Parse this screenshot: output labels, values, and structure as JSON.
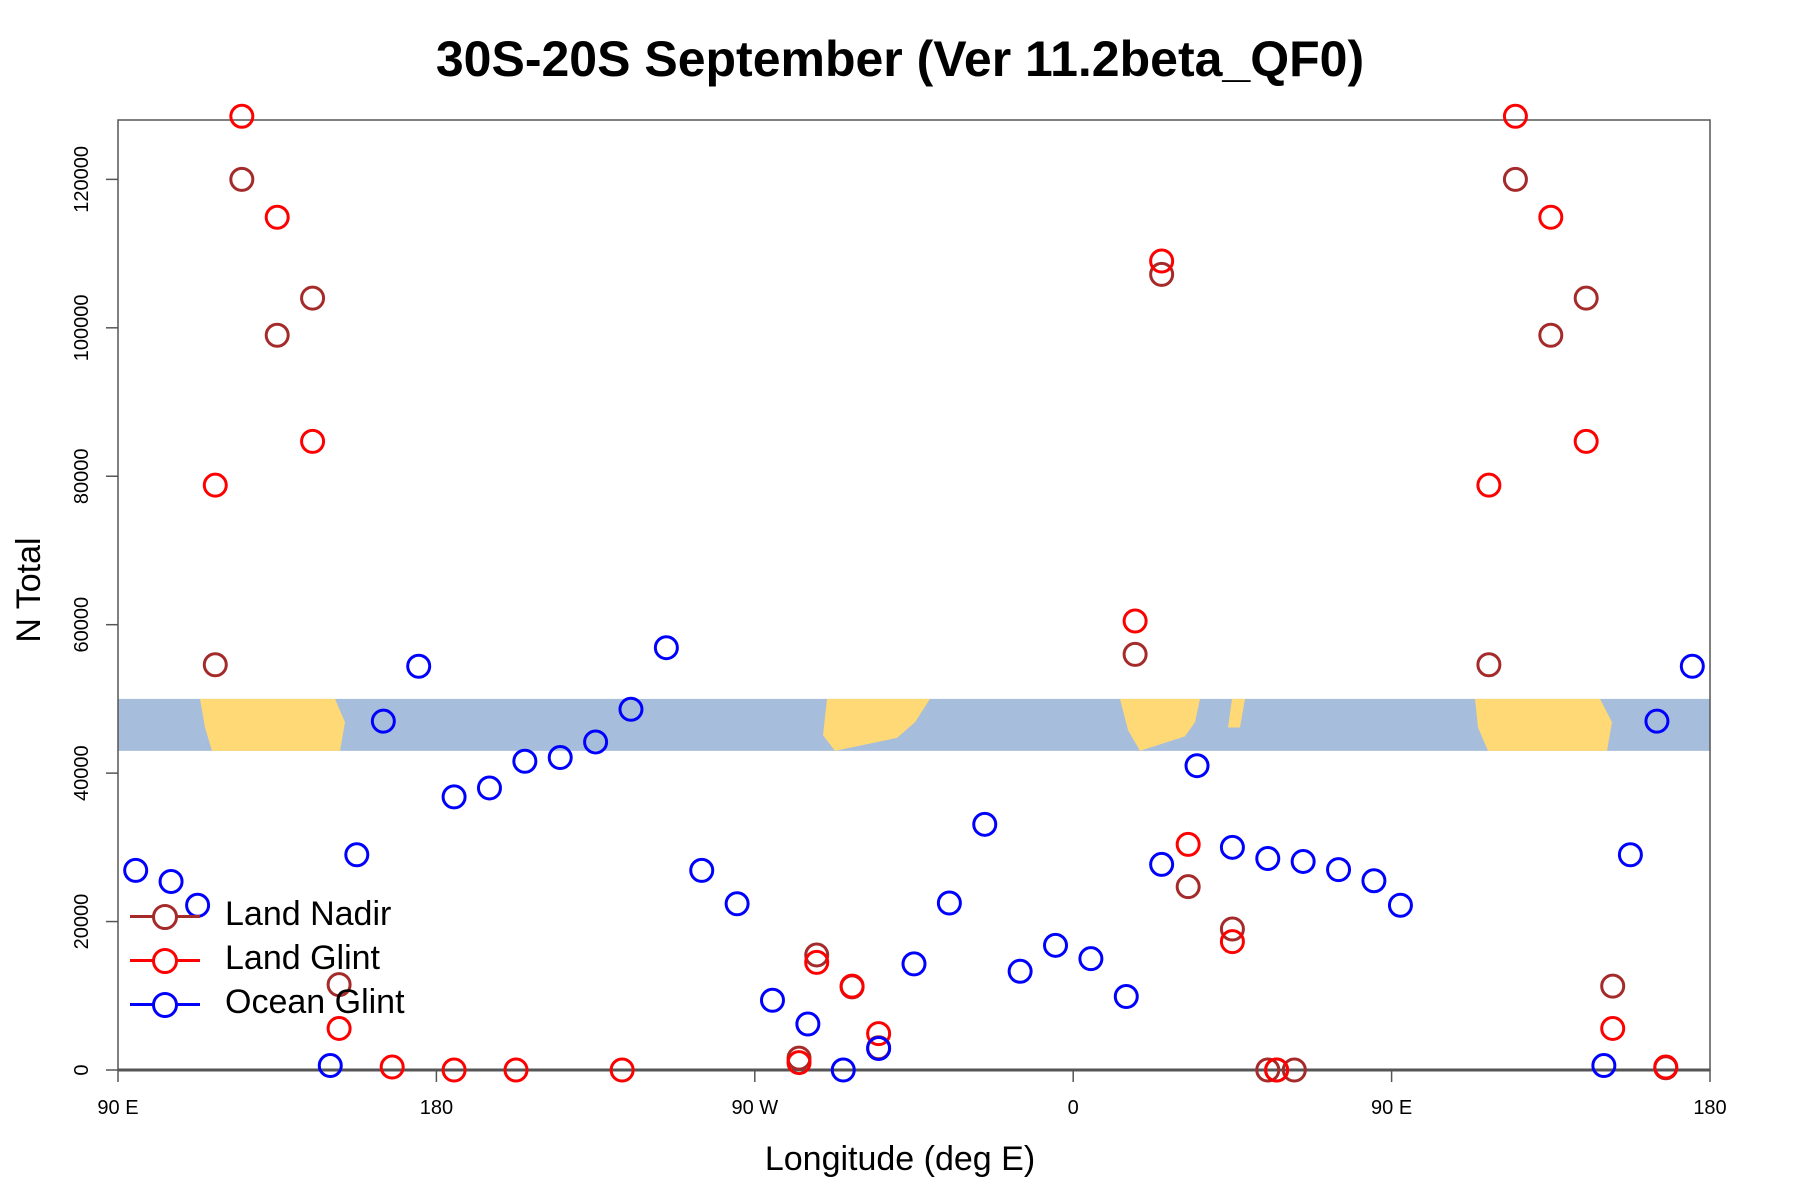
{
  "chart_data": {
    "type": "scatter",
    "title": "30S-20S September (Ver 11.2beta_QF0)",
    "xlabel": "Longitude (deg E)",
    "ylabel": "N Total",
    "xlim": [
      90,
      540
    ],
    "ylim": [
      0,
      128000
    ],
    "x_ticks": [
      {
        "value": 90,
        "label": "90 E"
      },
      {
        "value": 180,
        "label": "180"
      },
      {
        "value": 270,
        "label": "90 W"
      },
      {
        "value": 360,
        "label": "0"
      },
      {
        "value": 450,
        "label": "90 E"
      },
      {
        "value": 540,
        "label": "180"
      }
    ],
    "y_ticks": [
      {
        "value": 0,
        "label": "0"
      },
      {
        "value": 20000,
        "label": "20000"
      },
      {
        "value": 40000,
        "label": "40000"
      },
      {
        "value": 60000,
        "label": "60000"
      },
      {
        "value": 80000,
        "label": "80000"
      },
      {
        "value": 100000,
        "label": "100000"
      },
      {
        "value": 120000,
        "label": "120000"
      }
    ],
    "legend_position": "bottom-left",
    "series": [
      {
        "name": "Land Nadir",
        "color": "#a52a2a",
        "points": [
          [
            117.5,
            54600
          ],
          [
            125,
            120000
          ],
          [
            135,
            99000
          ],
          [
            145,
            104000
          ],
          [
            152.5,
            11500
          ],
          [
            282.5,
            1600
          ],
          [
            287.5,
            15500
          ],
          [
            297.5,
            11200
          ],
          [
            305,
            3000
          ],
          [
            377.5,
            56000
          ],
          [
            385,
            107200
          ],
          [
            392.5,
            24700
          ],
          [
            405,
            19000
          ],
          [
            415,
            0
          ],
          [
            417.5,
            0
          ],
          [
            422.5,
            0
          ],
          [
            477.5,
            54600
          ],
          [
            485,
            120000
          ],
          [
            495,
            99000
          ],
          [
            505,
            104000
          ],
          [
            512.5,
            11300
          ],
          [
            527.5,
            300
          ]
        ]
      },
      {
        "name": "Land Glint",
        "color": "#ff0000",
        "points": [
          [
            117.5,
            78800
          ],
          [
            125,
            128500
          ],
          [
            135,
            114900
          ],
          [
            145,
            84700
          ],
          [
            152.5,
            5600
          ],
          [
            167.5,
            400
          ],
          [
            185,
            0
          ],
          [
            202.5,
            0
          ],
          [
            232.5,
            0
          ],
          [
            282.5,
            1000
          ],
          [
            287.5,
            14500
          ],
          [
            297.5,
            11300
          ],
          [
            305,
            4900
          ],
          [
            377.5,
            60500
          ],
          [
            385,
            109000
          ],
          [
            392.5,
            30400
          ],
          [
            405,
            17300
          ],
          [
            417.5,
            0
          ],
          [
            477.5,
            78800
          ],
          [
            485,
            128500
          ],
          [
            495,
            114900
          ],
          [
            505,
            84700
          ],
          [
            512.5,
            5600
          ],
          [
            527.5,
            400
          ]
        ]
      },
      {
        "name": "Ocean Glint",
        "color": "#0000ff",
        "points": [
          [
            95,
            26900
          ],
          [
            105,
            25400
          ],
          [
            112.5,
            22200
          ],
          [
            150,
            600
          ],
          [
            157.5,
            29000
          ],
          [
            165,
            47000
          ],
          [
            175,
            54400
          ],
          [
            185,
            36800
          ],
          [
            195,
            38000
          ],
          [
            205,
            41600
          ],
          [
            215,
            42100
          ],
          [
            225,
            44200
          ],
          [
            235,
            48600
          ],
          [
            245,
            56900
          ],
          [
            255,
            26900
          ],
          [
            265,
            22400
          ],
          [
            275,
            9400
          ],
          [
            285,
            6200
          ],
          [
            295,
            0
          ],
          [
            305,
            2900
          ],
          [
            315,
            14300
          ],
          [
            325,
            22500
          ],
          [
            335,
            33100
          ],
          [
            345,
            13300
          ],
          [
            355,
            16800
          ],
          [
            365,
            15000
          ],
          [
            375,
            9900
          ],
          [
            385,
            27700
          ],
          [
            395,
            41000
          ],
          [
            405,
            30000
          ],
          [
            415,
            28500
          ],
          [
            425,
            28100
          ],
          [
            435,
            27000
          ],
          [
            445,
            25500
          ],
          [
            452.5,
            22200
          ],
          [
            510,
            600
          ],
          [
            517.5,
            29000
          ],
          [
            525,
            47000
          ],
          [
            535,
            54400
          ]
        ]
      }
    ]
  },
  "map_strip": {
    "ocean_color": "#a6bddb",
    "land_color": "#fed976",
    "value_range": [
      43000,
      50000
    ]
  },
  "axis_color": "#555555"
}
